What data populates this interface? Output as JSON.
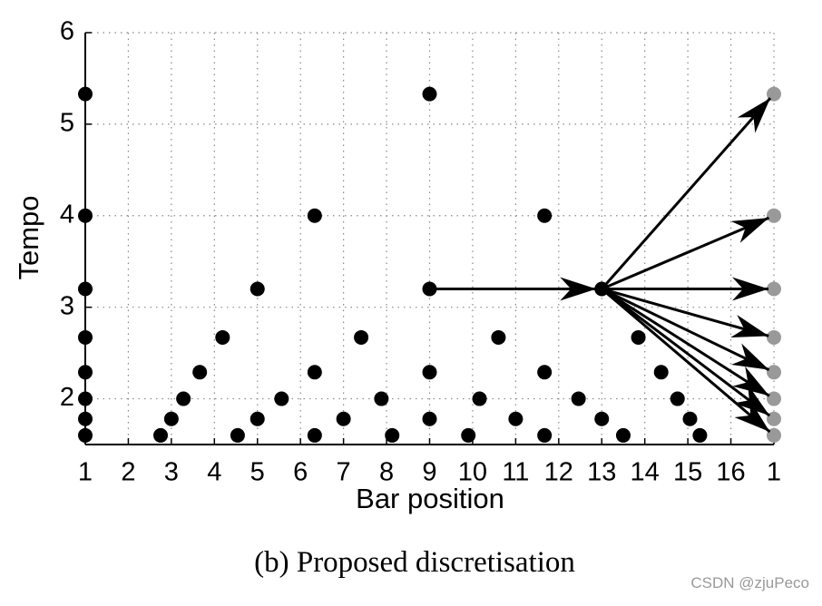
{
  "chart_data": {
    "type": "scatter",
    "xlabel": "Bar position",
    "ylabel": "Tempo",
    "caption": "(b) Proposed discretisation",
    "watermark": "CSDN @zjuPeco",
    "xlim": [
      1,
      17
    ],
    "ylim": [
      1.5,
      6
    ],
    "xticks": [
      1,
      2,
      3,
      4,
      5,
      6,
      7,
      8,
      9,
      10,
      11,
      12,
      13,
      14,
      15,
      16,
      {
        "value": 17,
        "label": "1"
      }
    ],
    "yticks": [
      2,
      3,
      4,
      5,
      6
    ],
    "grid": true,
    "series": [
      {
        "color": "#000000",
        "x": [
          1,
          1,
          1,
          1,
          1,
          1,
          1,
          1,
          2.75,
          3,
          3.28,
          3.66,
          4.19,
          4.54,
          5,
          5,
          5.56,
          6.33,
          6.33,
          6.33,
          7,
          7.41,
          7.88,
          8.13,
          9,
          9,
          9,
          9,
          9.9,
          10.16,
          10.6,
          11,
          11.67,
          11.67,
          11.67,
          12.46,
          13,
          13,
          13.5,
          13.85,
          14.38,
          14.76,
          15.05,
          15.28
        ],
        "values": [
          5.33,
          4,
          3.2,
          2.67,
          2.29,
          2,
          1.78,
          1.6,
          1.6,
          1.78,
          2,
          2.29,
          2.67,
          1.6,
          3.2,
          1.78,
          2,
          4,
          2.29,
          1.6,
          1.78,
          2.67,
          2,
          1.6,
          5.33,
          3.2,
          2.29,
          1.78,
          1.6,
          2,
          2.67,
          1.78,
          4,
          2.29,
          1.6,
          2,
          3.2,
          1.78,
          1.6,
          2.67,
          2.29,
          2,
          1.78,
          1.6
        ]
      },
      {
        "color": "#999999",
        "x": [
          17,
          17,
          17,
          17,
          17,
          17,
          17,
          17
        ],
        "values": [
          5.33,
          4,
          3.2,
          2.67,
          2.29,
          2,
          1.78,
          1.6
        ]
      }
    ],
    "arrows": [
      {
        "x": [
          9,
          13
        ],
        "values": [
          3.2,
          3.2
        ]
      },
      {
        "x": [
          13,
          17
        ],
        "values": [
          3.2,
          5.33
        ]
      },
      {
        "x": [
          13,
          17
        ],
        "values": [
          3.2,
          4
        ]
      },
      {
        "x": [
          13,
          17
        ],
        "values": [
          3.2,
          3.2
        ]
      },
      {
        "x": [
          13,
          17
        ],
        "values": [
          3.2,
          2.67
        ]
      },
      {
        "x": [
          13,
          17
        ],
        "values": [
          3.2,
          2.29
        ]
      },
      {
        "x": [
          13,
          17
        ],
        "values": [
          3.2,
          2
        ]
      },
      {
        "x": [
          13,
          17
        ],
        "values": [
          3.2,
          1.78
        ]
      },
      {
        "x": [
          13,
          17
        ],
        "values": [
          3.2,
          1.6
        ]
      }
    ]
  }
}
